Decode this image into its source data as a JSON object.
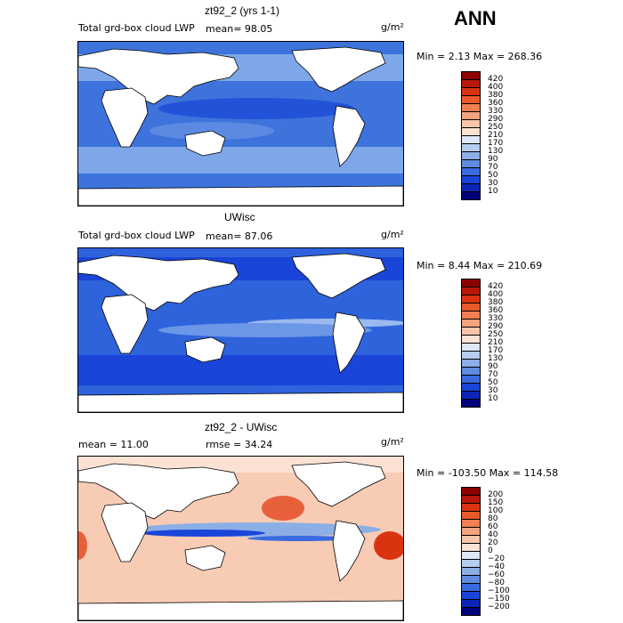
{
  "header": {
    "season": "ANN"
  },
  "panels": [
    {
      "id": "p1",
      "title": "zt92_2 (yrs 1-1)",
      "field_label": "Total grd-box cloud LWP",
      "stat1": "mean=   98.05",
      "stat2": "",
      "units": "g/m²",
      "minmax": "Min =    2.13 Max = 268.36",
      "colorbar": {
        "labels": [
          "420",
          "400",
          "380",
          "360",
          "330",
          "290",
          "250",
          "210",
          "170",
          "130",
          "90",
          "70",
          "50",
          "30",
          "10"
        ],
        "colors": [
          "#8b0000",
          "#b8180a",
          "#d93410",
          "#e85a2a",
          "#f07f52",
          "#f5a280",
          "#f9c5aa",
          "#fbe2d4",
          "#dde8f7",
          "#b6cdf0",
          "#8caee6",
          "#5f8be0",
          "#3a6ae0",
          "#1a45d8",
          "#0d24b4",
          "#00007a"
        ]
      },
      "palette": {
        "land": "#ffffff",
        "ocean_base": "#3e73dc",
        "light": "#7ea7ea",
        "deep": "#1545d6"
      }
    },
    {
      "id": "p2",
      "title": "UWisc",
      "field_label": "Total grd-box cloud LWP",
      "stat1": "mean=   87.06",
      "stat2": "",
      "units": "g/m²",
      "minmax": "Min =    8.44 Max = 210.69",
      "colorbar": {
        "labels": [
          "420",
          "400",
          "380",
          "360",
          "330",
          "290",
          "250",
          "210",
          "170",
          "130",
          "90",
          "70",
          "50",
          "30",
          "10"
        ],
        "colors": [
          "#8b0000",
          "#b8180a",
          "#d93410",
          "#e85a2a",
          "#f07f52",
          "#f5a280",
          "#f9c5aa",
          "#fbe2d4",
          "#dde8f7",
          "#b6cdf0",
          "#8caee6",
          "#5f8be0",
          "#3a6ae0",
          "#1a45d8",
          "#0d24b4",
          "#00007a"
        ]
      },
      "palette": {
        "land": "#ffffff",
        "ocean_base": "#2f63dc",
        "light": "#9ab9ee",
        "deep": "#1a45d8"
      }
    },
    {
      "id": "p3",
      "title": "zt92_2 - UWisc",
      "field_label": "",
      "stat1": "mean =   11.00",
      "stat2": "rmse =   34.24",
      "units": "g/m²",
      "minmax": "Min = -103.50 Max = 114.58",
      "colorbar": {
        "labels": [
          "200",
          "150",
          "100",
          "80",
          "60",
          "40",
          "20",
          "0",
          "−20",
          "−40",
          "−60",
          "−80",
          "−100",
          "−150",
          "−200"
        ],
        "colors": [
          "#8b0000",
          "#b8180a",
          "#d93410",
          "#e85a2a",
          "#f07f52",
          "#f5a280",
          "#f9c5aa",
          "#fbe2d4",
          "#dde8f7",
          "#b6cdf0",
          "#8caee6",
          "#5f8be0",
          "#3a6ae0",
          "#1a45d8",
          "#0d24b4",
          "#00007a"
        ]
      },
      "palette": {
        "land": "#ffffff",
        "ocean_base": "#f7cbb4",
        "light": "#fbe2d4",
        "deep": "#e8603a"
      }
    }
  ]
}
